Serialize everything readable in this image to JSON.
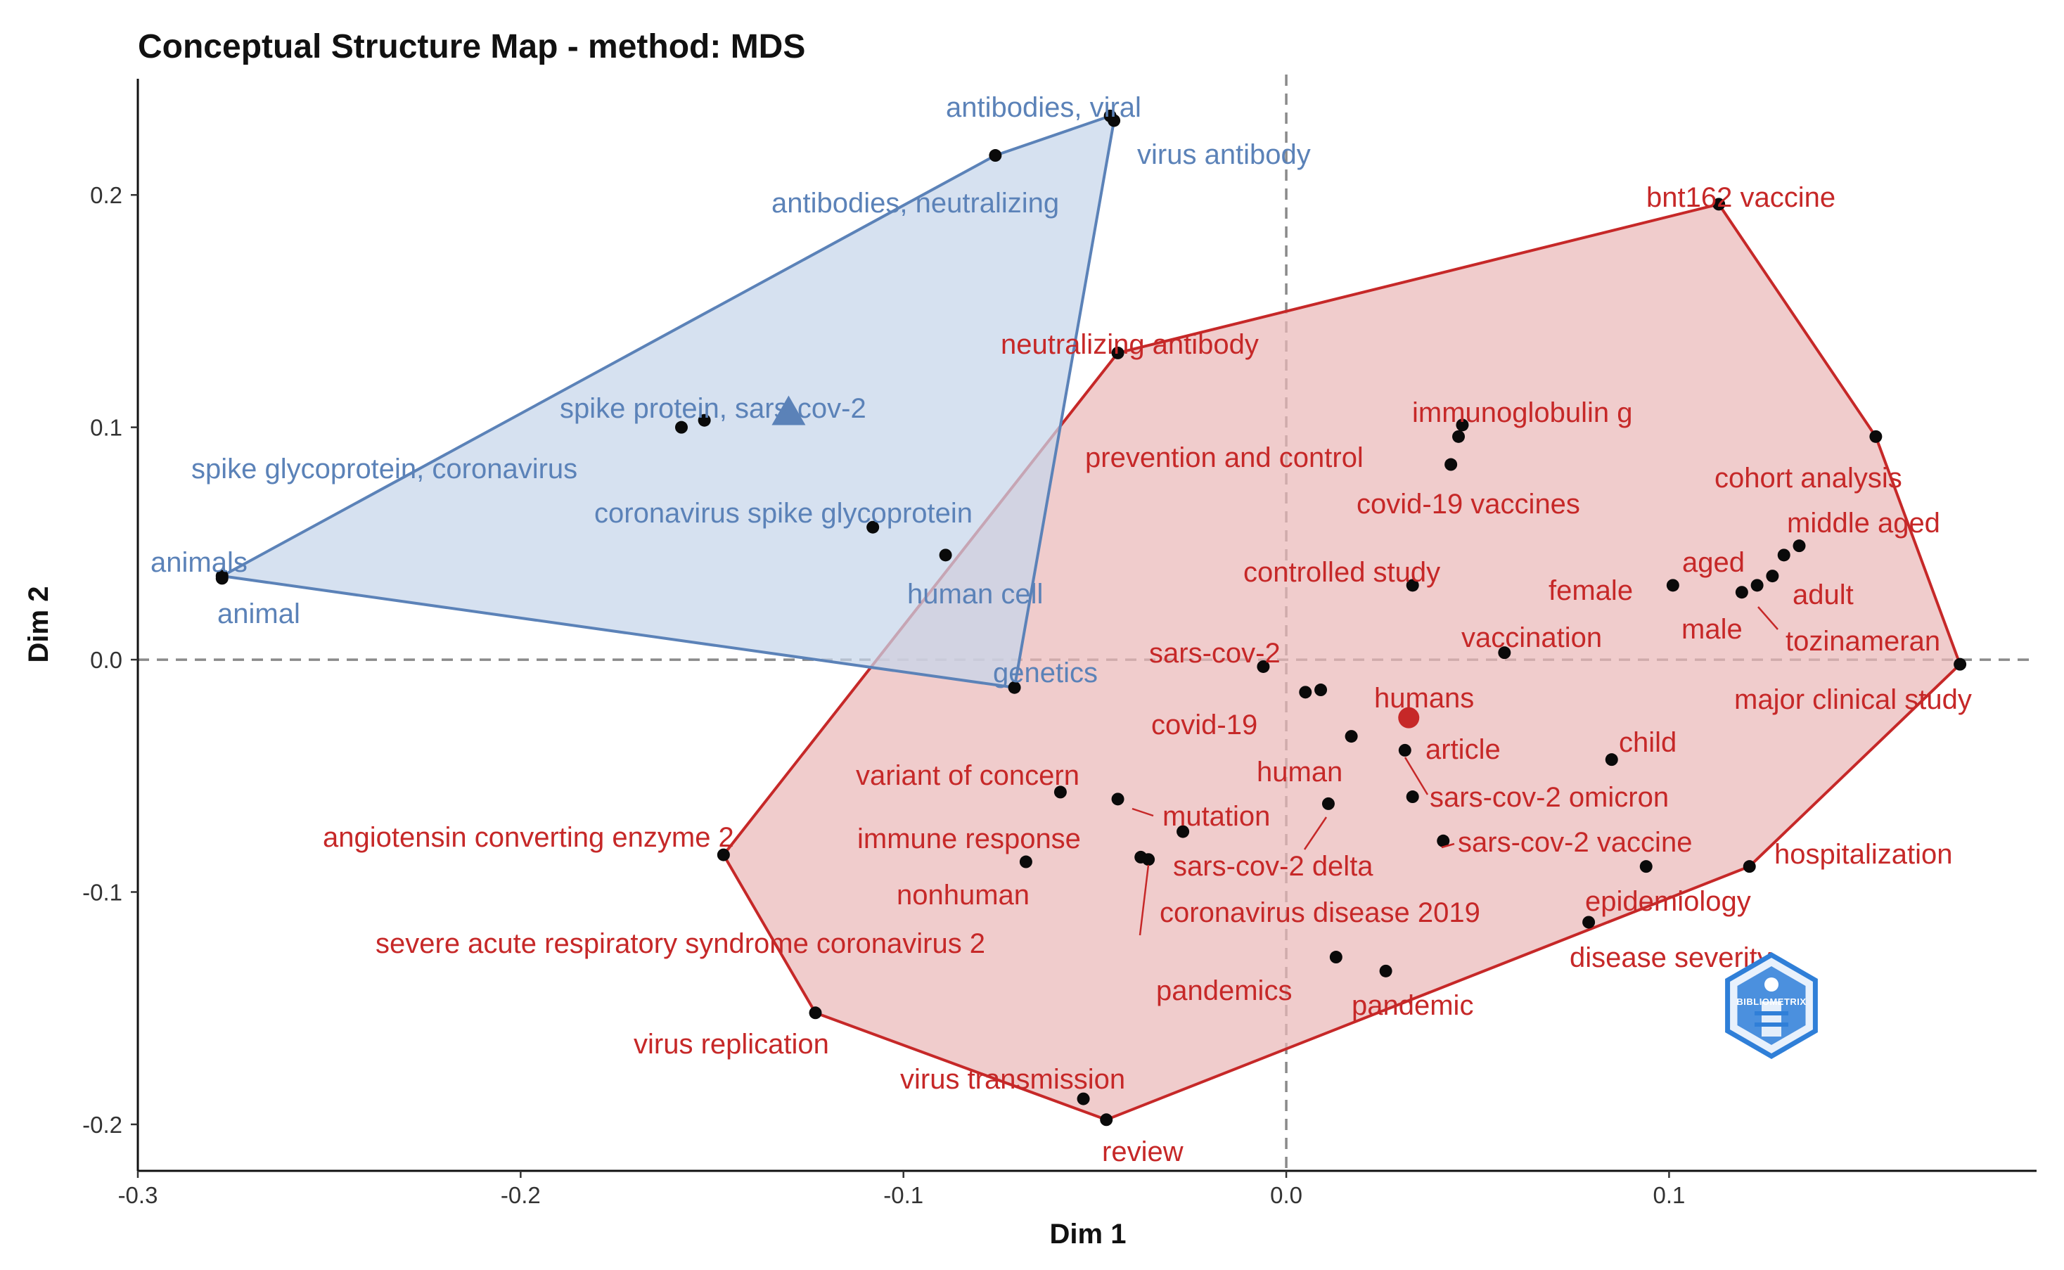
{
  "chart_data": {
    "type": "scatter",
    "title": "Conceptual Structure Map - method: MDS",
    "xlabel": "Dim 1",
    "ylabel": "Dim 2",
    "xlim": [
      -0.3,
      0.196
    ],
    "ylim": [
      -0.22,
      0.25
    ],
    "x_ticks": [
      -0.3,
      -0.2,
      -0.1,
      0.0,
      0.1
    ],
    "x_tick_labels": [
      "-0.3",
      "-0.2",
      "-0.1",
      "0.0",
      "0.1"
    ],
    "y_ticks": [
      -0.2,
      -0.1,
      0.0,
      0.1,
      0.2
    ],
    "y_tick_labels": [
      "-0.2",
      "-0.1",
      "0.0",
      "0.1",
      "0.2"
    ],
    "reference_lines": {
      "x": 0,
      "y": 0
    },
    "clusters": [
      {
        "name": "blue",
        "color": "#5b82b8",
        "fill": "#c6d5ea",
        "centroid": [
          -0.13,
          0.107
        ],
        "centroid_marker": "triangle",
        "hull": [
          "antibodies, viral",
          "virus antibody",
          "genetics",
          "animals",
          "antibodies, neutralizing"
        ],
        "points": [
          {
            "label": "antibodies, viral",
            "x": -0.046,
            "y": 0.234
          },
          {
            "label": "virus antibody",
            "x": -0.045,
            "y": 0.232
          },
          {
            "label": "antibodies, neutralizing",
            "x": -0.076,
            "y": 0.217
          },
          {
            "label": "spike protein, sars-cov-2",
            "x": -0.152,
            "y": 0.103
          },
          {
            "label": "spike glycoprotein, coronavirus",
            "x": -0.158,
            "y": 0.1
          },
          {
            "label": "coronavirus spike glycoprotein",
            "x": -0.108,
            "y": 0.057
          },
          {
            "label": "human cell",
            "x": -0.089,
            "y": 0.045
          },
          {
            "label": "animals",
            "x": -0.278,
            "y": 0.036
          },
          {
            "label": "animal",
            "x": -0.278,
            "y": 0.035
          },
          {
            "label": "genetics",
            "x": -0.071,
            "y": -0.012
          }
        ]
      },
      {
        "name": "red",
        "color": "#c62828",
        "fill": "#eab8b8",
        "centroid": [
          0.032,
          -0.025
        ],
        "centroid_marker": "circle",
        "hull": [
          "bnt162 vaccine",
          "cohort analysis",
          "major clinical study",
          "hospitalization",
          "review",
          "virus replication",
          "angiotensin converting enzyme 2",
          "neutralizing antibody"
        ],
        "points": [
          {
            "label": "bnt162 vaccine",
            "x": 0.113,
            "y": 0.196
          },
          {
            "label": "neutralizing antibody",
            "x": -0.044,
            "y": 0.132
          },
          {
            "label": "immunoglobulin g",
            "x": 0.046,
            "y": 0.101
          },
          {
            "label": "cohort analysis",
            "x": 0.154,
            "y": 0.096
          },
          {
            "label": "prevention and control",
            "x": 0.045,
            "y": 0.096
          },
          {
            "label": "covid-19 vaccines",
            "x": 0.043,
            "y": 0.084
          },
          {
            "label": "middle aged",
            "x": 0.134,
            "y": 0.049
          },
          {
            "label": "aged",
            "x": 0.13,
            "y": 0.045
          },
          {
            "label": "adult",
            "x": 0.127,
            "y": 0.036
          },
          {
            "label": "tozinameran",
            "x": 0.123,
            "y": 0.032
          },
          {
            "label": "male",
            "x": 0.119,
            "y": 0.029
          },
          {
            "label": "female",
            "x": 0.101,
            "y": 0.032
          },
          {
            "label": "controlled study",
            "x": 0.033,
            "y": 0.032
          },
          {
            "label": "vaccination",
            "x": 0.057,
            "y": 0.003
          },
          {
            "label": "major clinical study",
            "x": 0.176,
            "y": -0.002
          },
          {
            "label": "sars-cov-2",
            "x": -0.006,
            "y": -0.003
          },
          {
            "label": "humans",
            "x": 0.009,
            "y": -0.013
          },
          {
            "label": "covid-19",
            "x": 0.005,
            "y": -0.014
          },
          {
            "label": "article",
            "x": 0.032,
            "y": -0.024
          },
          {
            "label": "human",
            "x": 0.017,
            "y": -0.033
          },
          {
            "label": "sars-cov-2 omicron",
            "x": 0.031,
            "y": -0.039
          },
          {
            "label": "child",
            "x": 0.085,
            "y": -0.043
          },
          {
            "label": "variant of concern",
            "x": -0.059,
            "y": -0.057
          },
          {
            "label": "mutation",
            "x": -0.044,
            "y": -0.06
          },
          {
            "label": "sars-cov-2 vaccine",
            "x": 0.033,
            "y": -0.059
          },
          {
            "label": "sars-cov-2 delta",
            "x": 0.011,
            "y": -0.062
          },
          {
            "label": "immune response",
            "x": -0.027,
            "y": -0.074
          },
          {
            "label": "coronavirus disease 2019",
            "x": 0.041,
            "y": -0.078
          },
          {
            "label": "angiotensin converting enzyme 2",
            "x": -0.147,
            "y": -0.084
          },
          {
            "label": "severe acute respiratory syndrome coronavirus 2",
            "x": -0.038,
            "y": -0.085
          },
          {
            "label": "severe acute respiratory syndrome coronavirus 2 (b)",
            "x": -0.036,
            "y": -0.086
          },
          {
            "label": "nonhuman",
            "x": -0.068,
            "y": -0.087
          },
          {
            "label": "hospitalization",
            "x": 0.121,
            "y": -0.089
          },
          {
            "label": "epidemiology",
            "x": 0.094,
            "y": -0.089
          },
          {
            "label": "disease severity",
            "x": 0.079,
            "y": -0.113
          },
          {
            "label": "pandemics",
            "x": 0.013,
            "y": -0.128
          },
          {
            "label": "pandemic",
            "x": 0.026,
            "y": -0.134
          },
          {
            "label": "virus replication",
            "x": -0.123,
            "y": -0.152
          },
          {
            "label": "virus transmission",
            "x": -0.053,
            "y": -0.189
          },
          {
            "label": "review",
            "x": -0.047,
            "y": -0.198
          }
        ]
      }
    ],
    "labels": [
      {
        "text": "antibodies, viral",
        "cluster": "blue",
        "anchor": [
          -0.046,
          0.234
        ]
      },
      {
        "text": "virus antibody",
        "cluster": "blue",
        "anchor": [
          -0.045,
          0.232
        ]
      },
      {
        "text": "antibodies, neutralizing",
        "cluster": "blue",
        "anchor": [
          -0.076,
          0.217
        ]
      },
      {
        "text": "spike protein, sars-cov-2",
        "cluster": "blue",
        "anchor": [
          -0.152,
          0.103
        ]
      },
      {
        "text": "spike glycoprotein, coronavirus",
        "cluster": "blue",
        "anchor": [
          -0.158,
          0.1
        ]
      },
      {
        "text": "coronavirus spike glycoprotein",
        "cluster": "blue",
        "anchor": [
          -0.108,
          0.057
        ]
      },
      {
        "text": "human cell",
        "cluster": "blue",
        "anchor": [
          -0.089,
          0.045
        ]
      },
      {
        "text": "animals",
        "cluster": "blue",
        "anchor": [
          -0.278,
          0.036
        ]
      },
      {
        "text": "animal",
        "cluster": "blue",
        "anchor": [
          -0.278,
          0.035
        ]
      },
      {
        "text": "genetics",
        "cluster": "blue",
        "anchor": [
          -0.071,
          -0.012
        ]
      },
      {
        "text": "bnt162 vaccine",
        "cluster": "red",
        "anchor": [
          0.113,
          0.196
        ]
      },
      {
        "text": "neutralizing antibody",
        "cluster": "red",
        "anchor": [
          -0.044,
          0.132
        ]
      },
      {
        "text": "immunoglobulin g",
        "cluster": "red",
        "anchor": [
          0.046,
          0.101
        ]
      },
      {
        "text": "prevention and control",
        "cluster": "red",
        "anchor": [
          0.045,
          0.096
        ]
      },
      {
        "text": "cohort analysis",
        "cluster": "red",
        "anchor": [
          0.154,
          0.096
        ]
      },
      {
        "text": "covid-19 vaccines",
        "cluster": "red",
        "anchor": [
          0.043,
          0.084
        ]
      },
      {
        "text": "middle aged",
        "cluster": "red",
        "anchor": [
          0.134,
          0.049
        ]
      },
      {
        "text": "aged",
        "cluster": "red",
        "anchor": [
          0.13,
          0.045
        ]
      },
      {
        "text": "controlled study",
        "cluster": "red",
        "anchor": [
          0.033,
          0.032
        ]
      },
      {
        "text": "female",
        "cluster": "red",
        "anchor": [
          0.101,
          0.032
        ]
      },
      {
        "text": "adult",
        "cluster": "red",
        "anchor": [
          0.127,
          0.036
        ]
      },
      {
        "text": "male",
        "cluster": "red",
        "anchor": [
          0.119,
          0.029
        ]
      },
      {
        "text": "tozinameran",
        "cluster": "red",
        "anchor": [
          0.123,
          0.032
        ]
      },
      {
        "text": "vaccination",
        "cluster": "red",
        "anchor": [
          0.057,
          0.003
        ]
      },
      {
        "text": "sars-cov-2",
        "cluster": "red",
        "anchor": [
          -0.006,
          -0.003
        ]
      },
      {
        "text": "major clinical study",
        "cluster": "red",
        "anchor": [
          0.176,
          -0.002
        ]
      },
      {
        "text": "humans",
        "cluster": "red",
        "anchor": [
          0.009,
          -0.013
        ]
      },
      {
        "text": "covid-19",
        "cluster": "red",
        "anchor": [
          0.005,
          -0.014
        ]
      },
      {
        "text": "article",
        "cluster": "red",
        "anchor": [
          0.032,
          -0.024
        ]
      },
      {
        "text": "child",
        "cluster": "red",
        "anchor": [
          0.085,
          -0.043
        ]
      },
      {
        "text": "human",
        "cluster": "red",
        "anchor": [
          0.017,
          -0.033
        ]
      },
      {
        "text": "variant of concern",
        "cluster": "red",
        "anchor": [
          -0.059,
          -0.057
        ]
      },
      {
        "text": "sars-cov-2 omicron",
        "cluster": "red",
        "anchor": [
          0.031,
          -0.039
        ]
      },
      {
        "text": "mutation",
        "cluster": "red",
        "anchor": [
          -0.044,
          -0.06
        ]
      },
      {
        "text": "angiotensin converting enzyme 2",
        "cluster": "red",
        "anchor": [
          -0.147,
          -0.084
        ]
      },
      {
        "text": "immune response",
        "cluster": "red",
        "anchor": [
          -0.027,
          -0.074
        ]
      },
      {
        "text": "sars-cov-2 vaccine",
        "cluster": "red",
        "anchor": [
          0.033,
          -0.059
        ]
      },
      {
        "text": "hospitalization",
        "cluster": "red",
        "anchor": [
          0.121,
          -0.089
        ]
      },
      {
        "text": "sars-cov-2 delta",
        "cluster": "red",
        "anchor": [
          0.011,
          -0.062
        ]
      },
      {
        "text": "nonhuman",
        "cluster": "red",
        "anchor": [
          -0.068,
          -0.087
        ]
      },
      {
        "text": "epidemiology",
        "cluster": "red",
        "anchor": [
          0.094,
          -0.089
        ]
      },
      {
        "text": "coronavirus disease 2019",
        "cluster": "red",
        "anchor": [
          0.041,
          -0.078
        ]
      },
      {
        "text": "severe acute respiratory syndrome coronavirus 2",
        "cluster": "red",
        "anchor": [
          -0.038,
          -0.085
        ]
      },
      {
        "text": "disease severity",
        "cluster": "red",
        "anchor": [
          0.079,
          -0.113
        ]
      },
      {
        "text": "pandemics",
        "cluster": "red",
        "anchor": [
          0.013,
          -0.128
        ]
      },
      {
        "text": "pandemic",
        "cluster": "red",
        "anchor": [
          0.026,
          -0.134
        ]
      },
      {
        "text": "virus replication",
        "cluster": "red",
        "anchor": [
          -0.123,
          -0.152
        ]
      },
      {
        "text": "virus transmission",
        "cluster": "red",
        "anchor": [
          -0.053,
          -0.189
        ]
      },
      {
        "text": "review",
        "cluster": "red",
        "anchor": [
          -0.047,
          -0.198
        ]
      }
    ],
    "logo": {
      "name": "bibliometrix-logo",
      "text": "BIBLIOMETRIX",
      "color": "#2f7fd8"
    }
  }
}
